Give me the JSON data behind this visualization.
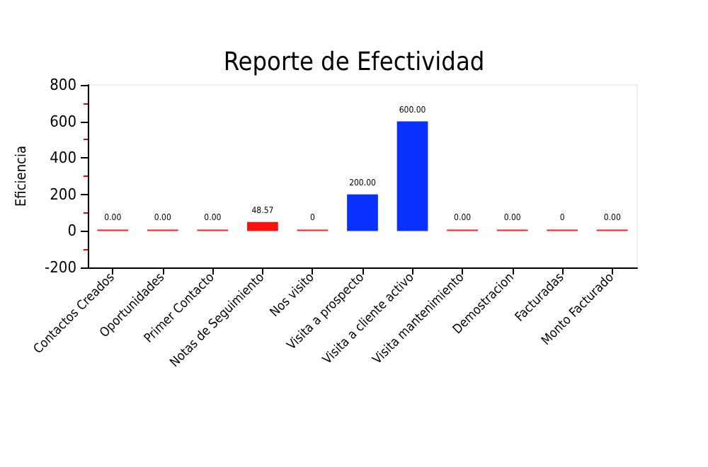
{
  "chart_data": {
    "type": "bar",
    "title": "Reporte de Efectividad",
    "ylabel": "Eficiencia",
    "categories": [
      "Contactos Creados",
      "Oportunidades",
      "Primer Contacto",
      "Notas de Seguimiento",
      "Nos visito",
      "Visita a prospecto",
      "Visita a cliente activo",
      "Visita mantenimiento",
      "Demostracion",
      "Facturadas",
      "Monto Facturado"
    ],
    "values": [
      0,
      0,
      0,
      48.57,
      0,
      200,
      600,
      0,
      0,
      0,
      0
    ],
    "colors": [
      "#ff2020",
      "#ff2020",
      "#ff2020",
      "#ff1010",
      "#ff2020",
      "#0a32ff",
      "#0a32ff",
      "#ff2020",
      "#ff2020",
      "#ff2020",
      "#ff2020"
    ],
    "value_labels": [
      "0.00",
      "0.00",
      "0.00",
      "48.57",
      "0",
      "200.00",
      "600.00",
      "0.00",
      "0.00",
      "0",
      "0.00"
    ],
    "ylim": [
      -200,
      800
    ],
    "yticks": [
      -200,
      0,
      200,
      400,
      600,
      800
    ],
    "grid": false
  }
}
